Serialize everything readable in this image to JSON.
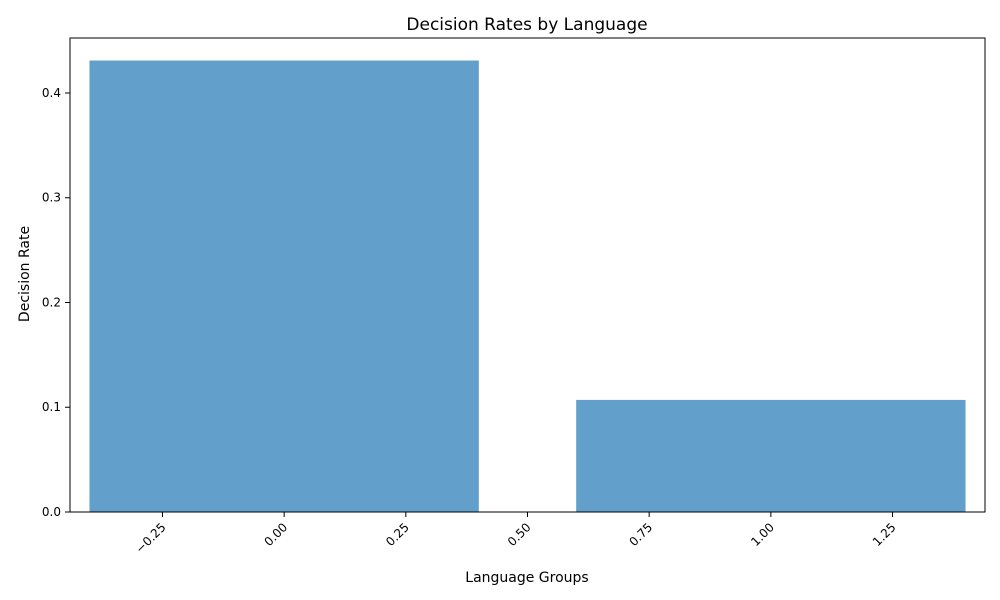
{
  "chart_data": {
    "type": "bar",
    "title": "Decision Rates by Language",
    "xlabel": "Language Groups",
    "ylabel": "Decision Rate",
    "bars": [
      {
        "x": 0,
        "width": 0.8,
        "value": 0.431
      },
      {
        "x": 1,
        "width": 0.8,
        "value": 0.107
      }
    ],
    "xlim": [
      -0.44,
      1.44
    ],
    "ylim": [
      0,
      0.4525
    ],
    "xticks": [
      -0.25,
      0.0,
      0.25,
      0.5,
      0.75,
      1.0,
      1.25
    ],
    "xtick_labels": [
      "−0.25",
      "0.00",
      "0.25",
      "0.50",
      "0.75",
      "1.00",
      "1.25"
    ],
    "yticks": [
      0.0,
      0.1,
      0.2,
      0.3,
      0.4
    ],
    "ytick_labels": [
      "0.0",
      "0.1",
      "0.2",
      "0.3",
      "0.4"
    ],
    "grid": false,
    "legend": "none",
    "bar_color": "#62a0cb"
  }
}
